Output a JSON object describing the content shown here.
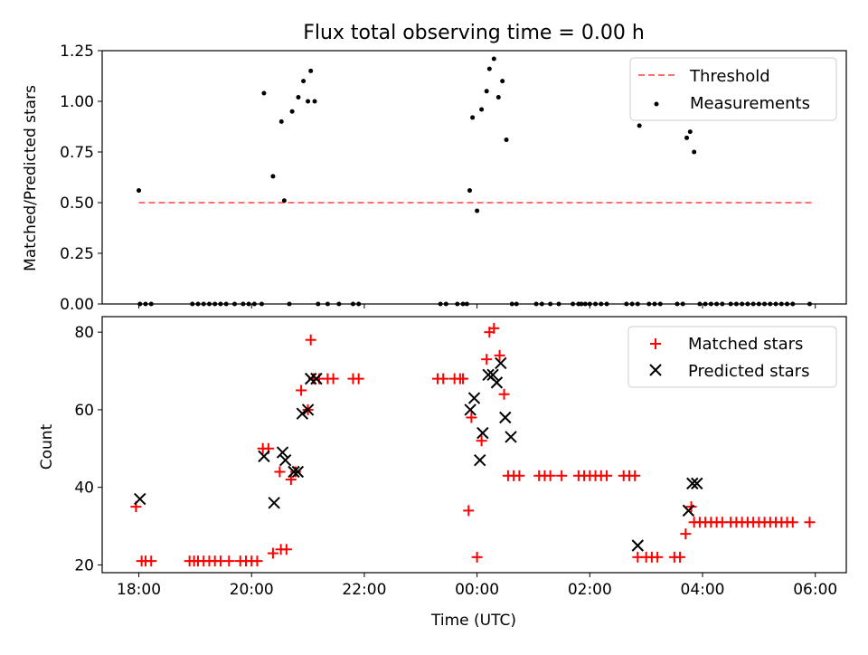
{
  "figure": {
    "title": "Flux total observing time = 0.00 h",
    "xlabel": "Time (UTC)",
    "x_tick_labels": [
      "18:00",
      "20:00",
      "22:00",
      "00:00",
      "02:00",
      "04:00",
      "06:00"
    ]
  },
  "chart_data": [
    {
      "type": "scatter",
      "title": "Flux total observing time = 0.00 h",
      "xlabel": "Time (UTC)",
      "ylabel": "Matched/Predicted stars",
      "x_unit": "hours since 18:00 UTC",
      "xlim": [
        -0.65,
        12.55
      ],
      "ylim": [
        0,
        1.25
      ],
      "yticks": [
        0.0,
        0.25,
        0.5,
        0.75,
        1.0,
        1.25
      ],
      "ytick_labels": [
        "0.00",
        "0.25",
        "0.50",
        "0.75",
        "1.00",
        "1.25"
      ],
      "legend": [
        "Threshold",
        "Measurements"
      ],
      "legend_position": "top-right",
      "threshold": {
        "name": "Threshold",
        "value": 0.5,
        "x_range": [
          0.0,
          11.95
        ],
        "color": "#ff7070"
      },
      "measurements": {
        "name": "Measurements",
        "color": "#000000",
        "points": [
          [
            0.0,
            0.56
          ],
          [
            0.02,
            0.0
          ],
          [
            0.12,
            0.0
          ],
          [
            0.22,
            0.0
          ],
          [
            0.95,
            0.0
          ],
          [
            1.05,
            0.0
          ],
          [
            1.15,
            0.0
          ],
          [
            1.25,
            0.0
          ],
          [
            1.35,
            0.0
          ],
          [
            1.45,
            0.0
          ],
          [
            1.55,
            0.0
          ],
          [
            1.7,
            0.0
          ],
          [
            1.85,
            0.0
          ],
          [
            1.95,
            0.0
          ],
          [
            2.05,
            0.0
          ],
          [
            2.18,
            0.0
          ],
          [
            2.22,
            1.04
          ],
          [
            2.38,
            0.63
          ],
          [
            2.53,
            0.9
          ],
          [
            2.58,
            0.51
          ],
          [
            2.67,
            0.0
          ],
          [
            2.72,
            0.95
          ],
          [
            2.83,
            1.02
          ],
          [
            2.92,
            1.1
          ],
          [
            3.0,
            1.0
          ],
          [
            3.05,
            1.15
          ],
          [
            3.12,
            1.0
          ],
          [
            3.18,
            0.0
          ],
          [
            3.35,
            0.0
          ],
          [
            3.55,
            0.0
          ],
          [
            3.8,
            0.0
          ],
          [
            3.9,
            0.0
          ],
          [
            5.35,
            0.0
          ],
          [
            5.45,
            0.0
          ],
          [
            5.65,
            0.0
          ],
          [
            5.75,
            0.0
          ],
          [
            5.82,
            0.0
          ],
          [
            5.87,
            0.56
          ],
          [
            5.92,
            0.92
          ],
          [
            6.0,
            0.46
          ],
          [
            6.08,
            0.96
          ],
          [
            6.17,
            1.05
          ],
          [
            6.22,
            1.16
          ],
          [
            6.3,
            1.21
          ],
          [
            6.38,
            1.02
          ],
          [
            6.45,
            1.1
          ],
          [
            6.52,
            0.81
          ],
          [
            6.62,
            0.0
          ],
          [
            6.7,
            0.0
          ],
          [
            7.05,
            0.0
          ],
          [
            7.15,
            0.0
          ],
          [
            7.3,
            0.0
          ],
          [
            7.45,
            0.0
          ],
          [
            7.7,
            0.0
          ],
          [
            7.8,
            0.0
          ],
          [
            7.85,
            0.0
          ],
          [
            7.92,
            0.0
          ],
          [
            8.0,
            0.0
          ],
          [
            8.1,
            0.0
          ],
          [
            8.2,
            0.0
          ],
          [
            8.3,
            0.0
          ],
          [
            8.65,
            0.0
          ],
          [
            8.75,
            0.0
          ],
          [
            8.85,
            0.0
          ],
          [
            8.88,
            0.88
          ],
          [
            9.05,
            0.0
          ],
          [
            9.15,
            0.0
          ],
          [
            9.25,
            0.0
          ],
          [
            9.55,
            0.0
          ],
          [
            9.65,
            0.0
          ],
          [
            9.72,
            0.82
          ],
          [
            9.78,
            0.85
          ],
          [
            9.85,
            0.75
          ],
          [
            9.95,
            0.0
          ],
          [
            10.05,
            0.0
          ],
          [
            10.15,
            0.0
          ],
          [
            10.25,
            0.0
          ],
          [
            10.35,
            0.0
          ],
          [
            10.5,
            0.0
          ],
          [
            10.6,
            0.0
          ],
          [
            10.7,
            0.0
          ],
          [
            10.8,
            0.0
          ],
          [
            10.9,
            0.0
          ],
          [
            11.0,
            0.0
          ],
          [
            11.1,
            0.0
          ],
          [
            11.2,
            0.0
          ],
          [
            11.3,
            0.0
          ],
          [
            11.4,
            0.0
          ],
          [
            11.5,
            0.0
          ],
          [
            11.6,
            0.0
          ],
          [
            11.9,
            0.0
          ]
        ]
      }
    },
    {
      "type": "scatter",
      "xlabel": "Time (UTC)",
      "ylabel": "Count",
      "x_unit": "hours since 18:00 UTC",
      "xlim": [
        -0.65,
        12.55
      ],
      "ylim": [
        18,
        84
      ],
      "yticks": [
        20,
        40,
        60,
        80
      ],
      "ytick_labels": [
        "20",
        "40",
        "60",
        "80"
      ],
      "legend": [
        "Matched stars",
        "Predicted stars"
      ],
      "legend_position": "top-right",
      "series": [
        {
          "name": "Matched stars",
          "marker": "+",
          "color": "#ff0000",
          "points": [
            [
              -0.05,
              35
            ],
            [
              0.05,
              21
            ],
            [
              0.12,
              21
            ],
            [
              0.22,
              21
            ],
            [
              0.9,
              21
            ],
            [
              0.98,
              21
            ],
            [
              1.05,
              21
            ],
            [
              1.15,
              21
            ],
            [
              1.25,
              21
            ],
            [
              1.35,
              21
            ],
            [
              1.45,
              21
            ],
            [
              1.6,
              21
            ],
            [
              1.8,
              21
            ],
            [
              1.9,
              21
            ],
            [
              2.0,
              21
            ],
            [
              2.1,
              21
            ],
            [
              2.2,
              50
            ],
            [
              2.3,
              50
            ],
            [
              2.38,
              23
            ],
            [
              2.5,
              44
            ],
            [
              2.52,
              24
            ],
            [
              2.62,
              24
            ],
            [
              2.7,
              42
            ],
            [
              2.78,
              44
            ],
            [
              2.88,
              65
            ],
            [
              3.0,
              60
            ],
            [
              3.05,
              78
            ],
            [
              3.1,
              68
            ],
            [
              3.2,
              68
            ],
            [
              3.35,
              68
            ],
            [
              3.45,
              68
            ],
            [
              3.8,
              68
            ],
            [
              3.9,
              68
            ],
            [
              5.3,
              68
            ],
            [
              5.4,
              68
            ],
            [
              5.6,
              68
            ],
            [
              5.7,
              68
            ],
            [
              5.75,
              68
            ],
            [
              5.85,
              34
            ],
            [
              5.9,
              58
            ],
            [
              6.0,
              22
            ],
            [
              6.08,
              52
            ],
            [
              6.17,
              73
            ],
            [
              6.22,
              80
            ],
            [
              6.3,
              81
            ],
            [
              6.4,
              74
            ],
            [
              6.48,
              64
            ],
            [
              6.55,
              43
            ],
            [
              6.65,
              43
            ],
            [
              6.75,
              43
            ],
            [
              7.1,
              43
            ],
            [
              7.2,
              43
            ],
            [
              7.3,
              43
            ],
            [
              7.5,
              43
            ],
            [
              7.8,
              43
            ],
            [
              7.9,
              43
            ],
            [
              8.0,
              43
            ],
            [
              8.1,
              43
            ],
            [
              8.2,
              43
            ],
            [
              8.3,
              43
            ],
            [
              8.6,
              43
            ],
            [
              8.7,
              43
            ],
            [
              8.8,
              43
            ],
            [
              8.85,
              22
            ],
            [
              9.0,
              22
            ],
            [
              9.1,
              22
            ],
            [
              9.2,
              22
            ],
            [
              9.5,
              22
            ],
            [
              9.6,
              22
            ],
            [
              9.7,
              28
            ],
            [
              9.8,
              35
            ],
            [
              9.85,
              31
            ],
            [
              9.95,
              31
            ],
            [
              10.05,
              31
            ],
            [
              10.15,
              31
            ],
            [
              10.25,
              31
            ],
            [
              10.35,
              31
            ],
            [
              10.5,
              31
            ],
            [
              10.6,
              31
            ],
            [
              10.7,
              31
            ],
            [
              10.8,
              31
            ],
            [
              10.9,
              31
            ],
            [
              11.0,
              31
            ],
            [
              11.1,
              31
            ],
            [
              11.2,
              31
            ],
            [
              11.3,
              31
            ],
            [
              11.4,
              31
            ],
            [
              11.5,
              31
            ],
            [
              11.6,
              31
            ],
            [
              11.9,
              31
            ]
          ]
        },
        {
          "name": "Predicted stars",
          "marker": "x",
          "color": "#000000",
          "points": [
            [
              0.02,
              37
            ],
            [
              2.22,
              48
            ],
            [
              2.4,
              36
            ],
            [
              2.55,
              49
            ],
            [
              2.6,
              47
            ],
            [
              2.75,
              44
            ],
            [
              2.82,
              44
            ],
            [
              2.9,
              59
            ],
            [
              3.0,
              60
            ],
            [
              3.05,
              68
            ],
            [
              3.15,
              68
            ],
            [
              5.88,
              60
            ],
            [
              5.95,
              63
            ],
            [
              6.05,
              47
            ],
            [
              6.1,
              54
            ],
            [
              6.2,
              69
            ],
            [
              6.28,
              69
            ],
            [
              6.35,
              67
            ],
            [
              6.42,
              72
            ],
            [
              6.5,
              58
            ],
            [
              6.6,
              53
            ],
            [
              8.85,
              25
            ],
            [
              9.75,
              34
            ],
            [
              9.82,
              41
            ],
            [
              9.9,
              41
            ]
          ]
        }
      ]
    }
  ]
}
